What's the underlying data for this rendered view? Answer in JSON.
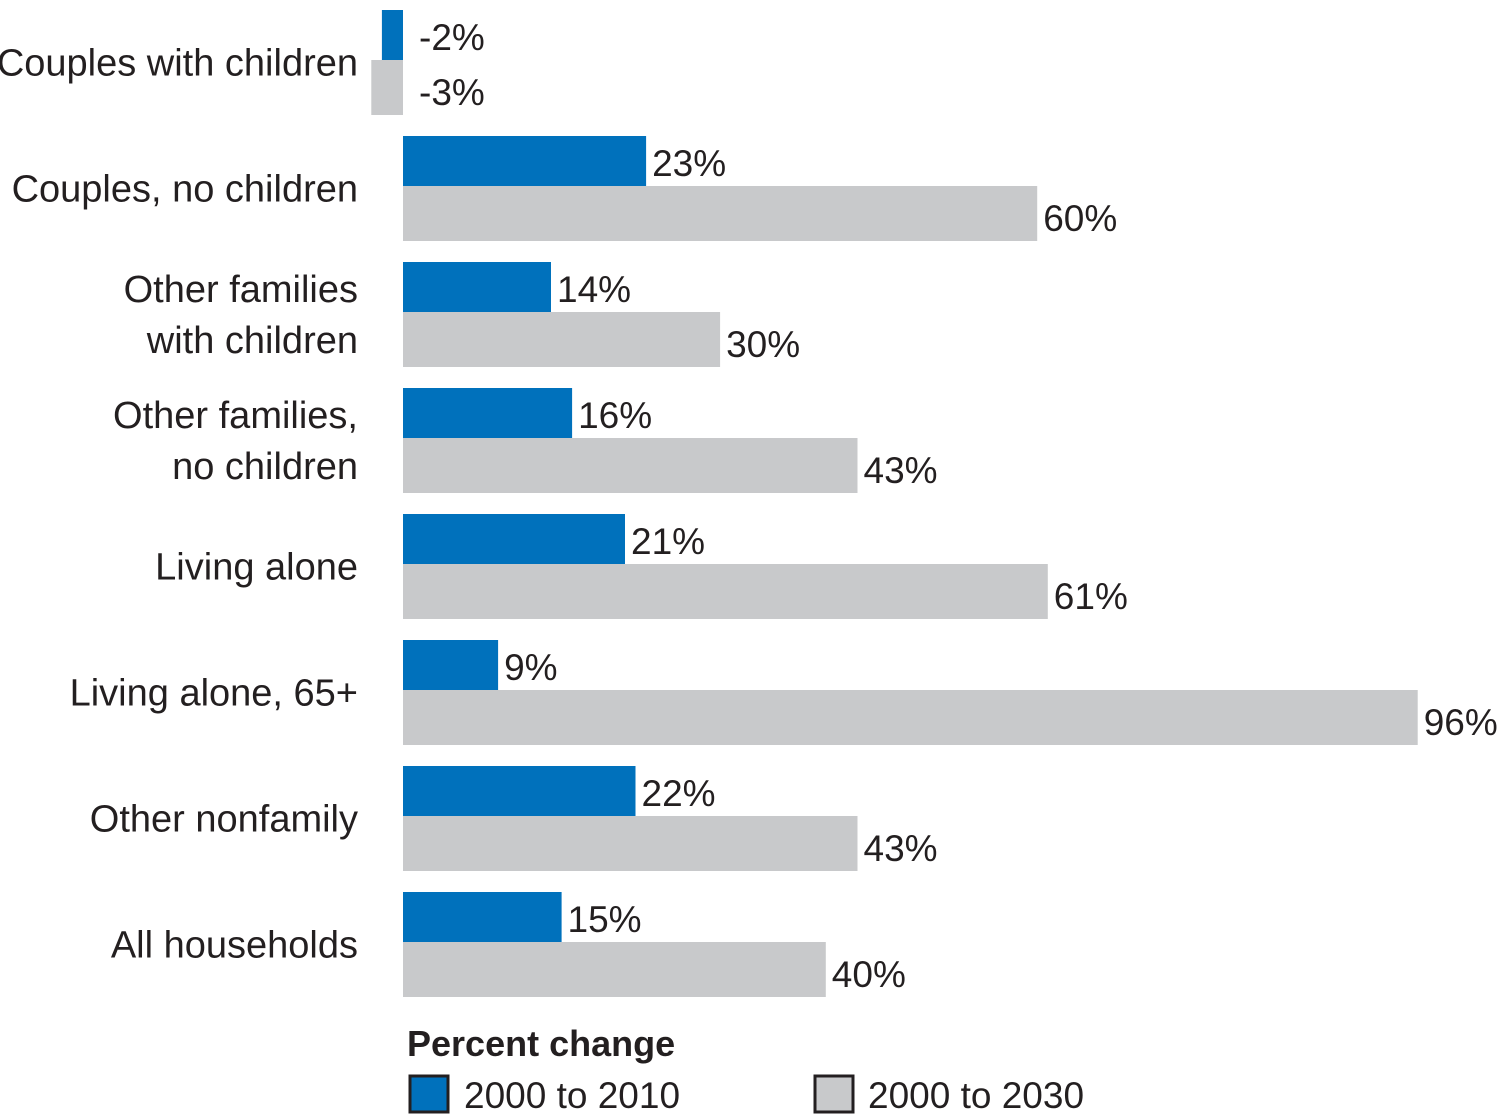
{
  "chart_data": {
    "type": "bar",
    "orientation": "horizontal",
    "categories": [
      [
        "Couples with children"
      ],
      [
        "Couples, no children"
      ],
      [
        "Other families",
        "with children"
      ],
      [
        "Other families,",
        "no children"
      ],
      [
        "Living alone"
      ],
      [
        "Living alone, 65+"
      ],
      [
        "Other nonfamily"
      ],
      [
        "All households"
      ]
    ],
    "series": [
      {
        "name": "2000 to 2010",
        "color": "#0071bc",
        "values": [
          -2,
          23,
          14,
          16,
          21,
          9,
          22,
          15
        ],
        "labels": [
          "-2%",
          "23%",
          "14%",
          "16%",
          "21%",
          "9%",
          "22%",
          "15%"
        ]
      },
      {
        "name": "2000 to 2030",
        "color": "#c8c9cb",
        "values": [
          -3,
          60,
          30,
          43,
          61,
          96,
          43,
          40
        ],
        "labels": [
          "-3%",
          "60%",
          "30%",
          "43%",
          "61%",
          "96%",
          "43%",
          "40%"
        ]
      }
    ],
    "legend_title": "Percent change",
    "legend_position": "bottom-left",
    "xlim": [
      -3,
      96
    ],
    "grid": false,
    "axes_visible": false
  }
}
